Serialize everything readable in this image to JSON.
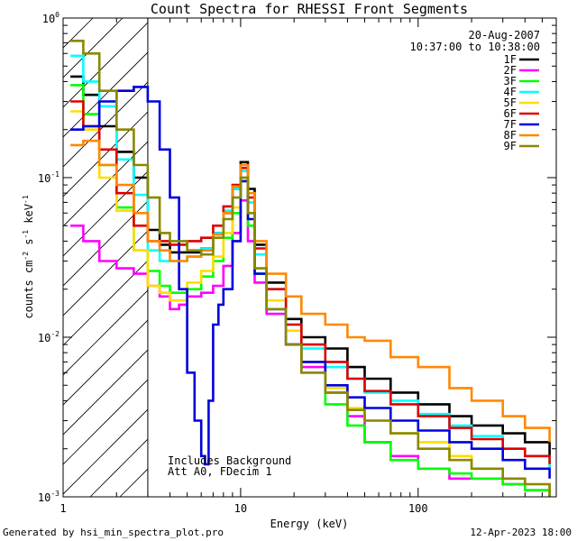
{
  "chart_data": {
    "type": "line",
    "title": "Count Spectra for RHESSI Front Segments",
    "xlabel": "Energy (keV)",
    "ylabel_base": "counts cm",
    "ylabel_sup1": "-2",
    "ylabel_mid": " s",
    "ylabel_sup2": "-1",
    "ylabel_end": " keV",
    "ylabel_sup3": "-1",
    "xscale": "log",
    "yscale": "log",
    "xlim": [
      1,
      600
    ],
    "ylim": [
      0.001,
      1
    ],
    "x_ticks": [
      {
        "v": 1,
        "label": "1"
      },
      {
        "v": 10,
        "label": "10"
      },
      {
        "v": 100,
        "label": "100"
      }
    ],
    "y_ticks": [
      {
        "v": 1,
        "base": "10",
        "exp": "0"
      },
      {
        "v": 0.1,
        "base": "10",
        "exp": "-1"
      },
      {
        "v": 0.01,
        "base": "10",
        "exp": "-2"
      },
      {
        "v": 0.001,
        "base": "10",
        "exp": "-3"
      }
    ],
    "date": "20-Aug-2007",
    "time_range": "10:37:00 to 10:38:00",
    "hatched_region": {
      "x_from": 1,
      "x_to": 3
    },
    "annotations": [
      "Includes Background",
      "Att A0, FDecim 1"
    ],
    "series": [
      {
        "name": "1F",
        "color": "#000000",
        "points": [
          [
            1.1,
            0.43
          ],
          [
            1.3,
            0.33
          ],
          [
            1.6,
            0.21
          ],
          [
            2.0,
            0.145
          ],
          [
            2.5,
            0.1
          ],
          [
            3,
            0.047
          ],
          [
            3.5,
            0.038
          ],
          [
            4,
            0.034
          ],
          [
            5,
            0.034
          ],
          [
            6,
            0.036
          ],
          [
            7,
            0.045
          ],
          [
            8,
            0.06
          ],
          [
            9,
            0.085
          ],
          [
            10,
            0.125
          ],
          [
            11,
            0.085
          ],
          [
            12,
            0.038
          ],
          [
            14,
            0.022
          ],
          [
            18,
            0.013
          ],
          [
            22,
            0.01
          ],
          [
            30,
            0.0085
          ],
          [
            40,
            0.0065
          ],
          [
            50,
            0.0055
          ],
          [
            70,
            0.0045
          ],
          [
            100,
            0.0038
          ],
          [
            150,
            0.0032
          ],
          [
            200,
            0.0028
          ],
          [
            300,
            0.0025
          ],
          [
            400,
            0.0022
          ],
          [
            550,
            0.0018
          ]
        ]
      },
      {
        "name": "2F",
        "color": "#ff00ff",
        "points": [
          [
            1.1,
            0.05
          ],
          [
            1.3,
            0.04
          ],
          [
            1.6,
            0.03
          ],
          [
            2.0,
            0.027
          ],
          [
            2.5,
            0.025
          ],
          [
            3,
            0.021
          ],
          [
            3.5,
            0.018
          ],
          [
            4,
            0.015
          ],
          [
            4.5,
            0.016
          ],
          [
            5,
            0.018
          ],
          [
            6,
            0.019
          ],
          [
            7,
            0.021
          ],
          [
            8,
            0.028
          ],
          [
            9,
            0.045
          ],
          [
            10,
            0.072
          ],
          [
            11,
            0.04
          ],
          [
            12,
            0.022
          ],
          [
            14,
            0.014
          ],
          [
            18,
            0.009
          ],
          [
            22,
            0.0065
          ],
          [
            30,
            0.0045
          ],
          [
            40,
            0.0032
          ],
          [
            50,
            0.0022
          ],
          [
            70,
            0.0018
          ],
          [
            100,
            0.0015
          ],
          [
            150,
            0.0013
          ],
          [
            200,
            0.0013
          ],
          [
            300,
            0.0012
          ],
          [
            400,
            0.0011
          ],
          [
            550,
            0.001
          ]
        ]
      },
      {
        "name": "3F",
        "color": "#00ff00",
        "points": [
          [
            1.1,
            0.38
          ],
          [
            1.3,
            0.25
          ],
          [
            1.6,
            0.12
          ],
          [
            2.0,
            0.065
          ],
          [
            2.5,
            0.035
          ],
          [
            3,
            0.026
          ],
          [
            3.5,
            0.021
          ],
          [
            4,
            0.019
          ],
          [
            5,
            0.02
          ],
          [
            6,
            0.024
          ],
          [
            7,
            0.03
          ],
          [
            8,
            0.042
          ],
          [
            9,
            0.06
          ],
          [
            10,
            0.1
          ],
          [
            11,
            0.05
          ],
          [
            12,
            0.025
          ],
          [
            14,
            0.015
          ],
          [
            18,
            0.009
          ],
          [
            22,
            0.006
          ],
          [
            30,
            0.0038
          ],
          [
            40,
            0.0028
          ],
          [
            50,
            0.0022
          ],
          [
            70,
            0.0017
          ],
          [
            100,
            0.0015
          ],
          [
            150,
            0.0014
          ],
          [
            200,
            0.0013
          ],
          [
            300,
            0.0012
          ],
          [
            400,
            0.0011
          ],
          [
            550,
            0.001
          ]
        ]
      },
      {
        "name": "4F",
        "color": "#00ffff",
        "points": [
          [
            1.1,
            0.58
          ],
          [
            1.3,
            0.4
          ],
          [
            1.6,
            0.28
          ],
          [
            2.0,
            0.13
          ],
          [
            2.5,
            0.078
          ],
          [
            3,
            0.035
          ],
          [
            3.5,
            0.03
          ],
          [
            4,
            0.03
          ],
          [
            5,
            0.032
          ],
          [
            6,
            0.036
          ],
          [
            7,
            0.045
          ],
          [
            8,
            0.062
          ],
          [
            9,
            0.085
          ],
          [
            10,
            0.11
          ],
          [
            11,
            0.07
          ],
          [
            12,
            0.033
          ],
          [
            14,
            0.02
          ],
          [
            18,
            0.012
          ],
          [
            22,
            0.0085
          ],
          [
            30,
            0.0065
          ],
          [
            40,
            0.0055
          ],
          [
            50,
            0.0045
          ],
          [
            70,
            0.004
          ],
          [
            100,
            0.0033
          ],
          [
            150,
            0.0028
          ],
          [
            200,
            0.0024
          ],
          [
            300,
            0.002
          ],
          [
            400,
            0.0018
          ],
          [
            550,
            0.0015
          ]
        ]
      },
      {
        "name": "5F",
        "color": "#ffdd00",
        "points": [
          [
            1.1,
            0.26
          ],
          [
            1.3,
            0.2
          ],
          [
            1.6,
            0.1
          ],
          [
            2.0,
            0.062
          ],
          [
            2.5,
            0.035
          ],
          [
            3,
            0.021
          ],
          [
            3.5,
            0.019
          ],
          [
            4,
            0.017
          ],
          [
            5,
            0.022
          ],
          [
            6,
            0.026
          ],
          [
            7,
            0.032
          ],
          [
            8,
            0.045
          ],
          [
            9,
            0.065
          ],
          [
            10,
            0.095
          ],
          [
            11,
            0.055
          ],
          [
            12,
            0.027
          ],
          [
            14,
            0.017
          ],
          [
            18,
            0.011
          ],
          [
            22,
            0.007
          ],
          [
            30,
            0.0048
          ],
          [
            40,
            0.0036
          ],
          [
            50,
            0.003
          ],
          [
            70,
            0.0025
          ],
          [
            100,
            0.0022
          ],
          [
            150,
            0.0018
          ],
          [
            200,
            0.0015
          ],
          [
            300,
            0.0013
          ],
          [
            400,
            0.0012
          ],
          [
            550,
            0.0011
          ]
        ]
      },
      {
        "name": "6F",
        "color": "#dd0000",
        "points": [
          [
            1.1,
            0.3
          ],
          [
            1.3,
            0.21
          ],
          [
            1.6,
            0.15
          ],
          [
            2.0,
            0.08
          ],
          [
            2.5,
            0.05
          ],
          [
            3,
            0.04
          ],
          [
            3.5,
            0.04
          ],
          [
            4,
            0.038
          ],
          [
            5,
            0.04
          ],
          [
            6,
            0.042
          ],
          [
            7,
            0.05
          ],
          [
            8,
            0.066
          ],
          [
            9,
            0.09
          ],
          [
            10,
            0.115
          ],
          [
            11,
            0.075
          ],
          [
            12,
            0.036
          ],
          [
            14,
            0.02
          ],
          [
            18,
            0.012
          ],
          [
            22,
            0.009
          ],
          [
            30,
            0.007
          ],
          [
            40,
            0.0055
          ],
          [
            50,
            0.0046
          ],
          [
            70,
            0.0038
          ],
          [
            100,
            0.0032
          ],
          [
            150,
            0.0027
          ],
          [
            200,
            0.0023
          ],
          [
            300,
            0.002
          ],
          [
            400,
            0.0018
          ],
          [
            550,
            0.0016
          ]
        ]
      },
      {
        "name": "7F",
        "color": "#0000dd",
        "points": [
          [
            1.1,
            0.2
          ],
          [
            1.3,
            0.21
          ],
          [
            1.6,
            0.3
          ],
          [
            2.0,
            0.35
          ],
          [
            2.5,
            0.37
          ],
          [
            3,
            0.3
          ],
          [
            3.5,
            0.15
          ],
          [
            4,
            0.075
          ],
          [
            4.5,
            0.02
          ],
          [
            5,
            0.006
          ],
          [
            5.5,
            0.003
          ],
          [
            6,
            0.0018
          ],
          [
            6.3,
            0.0016
          ],
          [
            6.6,
            0.004
          ],
          [
            7,
            0.012
          ],
          [
            7.5,
            0.016
          ],
          [
            8,
            0.02
          ],
          [
            9,
            0.04
          ],
          [
            10,
            0.095
          ],
          [
            11,
            0.055
          ],
          [
            12,
            0.025
          ],
          [
            14,
            0.015
          ],
          [
            18,
            0.009
          ],
          [
            22,
            0.007
          ],
          [
            30,
            0.005
          ],
          [
            40,
            0.0042
          ],
          [
            50,
            0.0036
          ],
          [
            70,
            0.003
          ],
          [
            100,
            0.0026
          ],
          [
            150,
            0.0022
          ],
          [
            200,
            0.002
          ],
          [
            300,
            0.0017
          ],
          [
            400,
            0.0015
          ],
          [
            550,
            0.0013
          ]
        ]
      },
      {
        "name": "8F",
        "color": "#ff8800",
        "points": [
          [
            1.1,
            0.16
          ],
          [
            1.3,
            0.17
          ],
          [
            1.6,
            0.12
          ],
          [
            2.0,
            0.09
          ],
          [
            2.5,
            0.06
          ],
          [
            3,
            0.04
          ],
          [
            3.5,
            0.035
          ],
          [
            4,
            0.03
          ],
          [
            5,
            0.032
          ],
          [
            6,
            0.035
          ],
          [
            7,
            0.044
          ],
          [
            8,
            0.06
          ],
          [
            9,
            0.088
          ],
          [
            10,
            0.12
          ],
          [
            11,
            0.08
          ],
          [
            12,
            0.04
          ],
          [
            14,
            0.025
          ],
          [
            18,
            0.018
          ],
          [
            22,
            0.014
          ],
          [
            30,
            0.012
          ],
          [
            40,
            0.01
          ],
          [
            50,
            0.0095
          ],
          [
            70,
            0.0075
          ],
          [
            100,
            0.0065
          ],
          [
            150,
            0.0048
          ],
          [
            200,
            0.004
          ],
          [
            300,
            0.0032
          ],
          [
            400,
            0.0027
          ],
          [
            550,
            0.0022
          ]
        ]
      },
      {
        "name": "9F",
        "color": "#888800",
        "points": [
          [
            1.1,
            0.72
          ],
          [
            1.3,
            0.6
          ],
          [
            1.6,
            0.35
          ],
          [
            2.0,
            0.2
          ],
          [
            2.5,
            0.12
          ],
          [
            3,
            0.075
          ],
          [
            3.5,
            0.045
          ],
          [
            4,
            0.04
          ],
          [
            5,
            0.035
          ],
          [
            6,
            0.033
          ],
          [
            7,
            0.042
          ],
          [
            8,
            0.055
          ],
          [
            9,
            0.075
          ],
          [
            10,
            0.1
          ],
          [
            11,
            0.06
          ],
          [
            12,
            0.027
          ],
          [
            14,
            0.015
          ],
          [
            18,
            0.009
          ],
          [
            22,
            0.006
          ],
          [
            30,
            0.0045
          ],
          [
            40,
            0.0035
          ],
          [
            50,
            0.003
          ],
          [
            70,
            0.0025
          ],
          [
            100,
            0.002
          ],
          [
            150,
            0.0017
          ],
          [
            200,
            0.0015
          ],
          [
            300,
            0.0013
          ],
          [
            400,
            0.0012
          ],
          [
            550,
            0.001
          ]
        ]
      }
    ]
  },
  "footer": {
    "generated_by": "Generated by hsi_min_spectra_plot.pro",
    "timestamp": "12-Apr-2023 18:00"
  }
}
